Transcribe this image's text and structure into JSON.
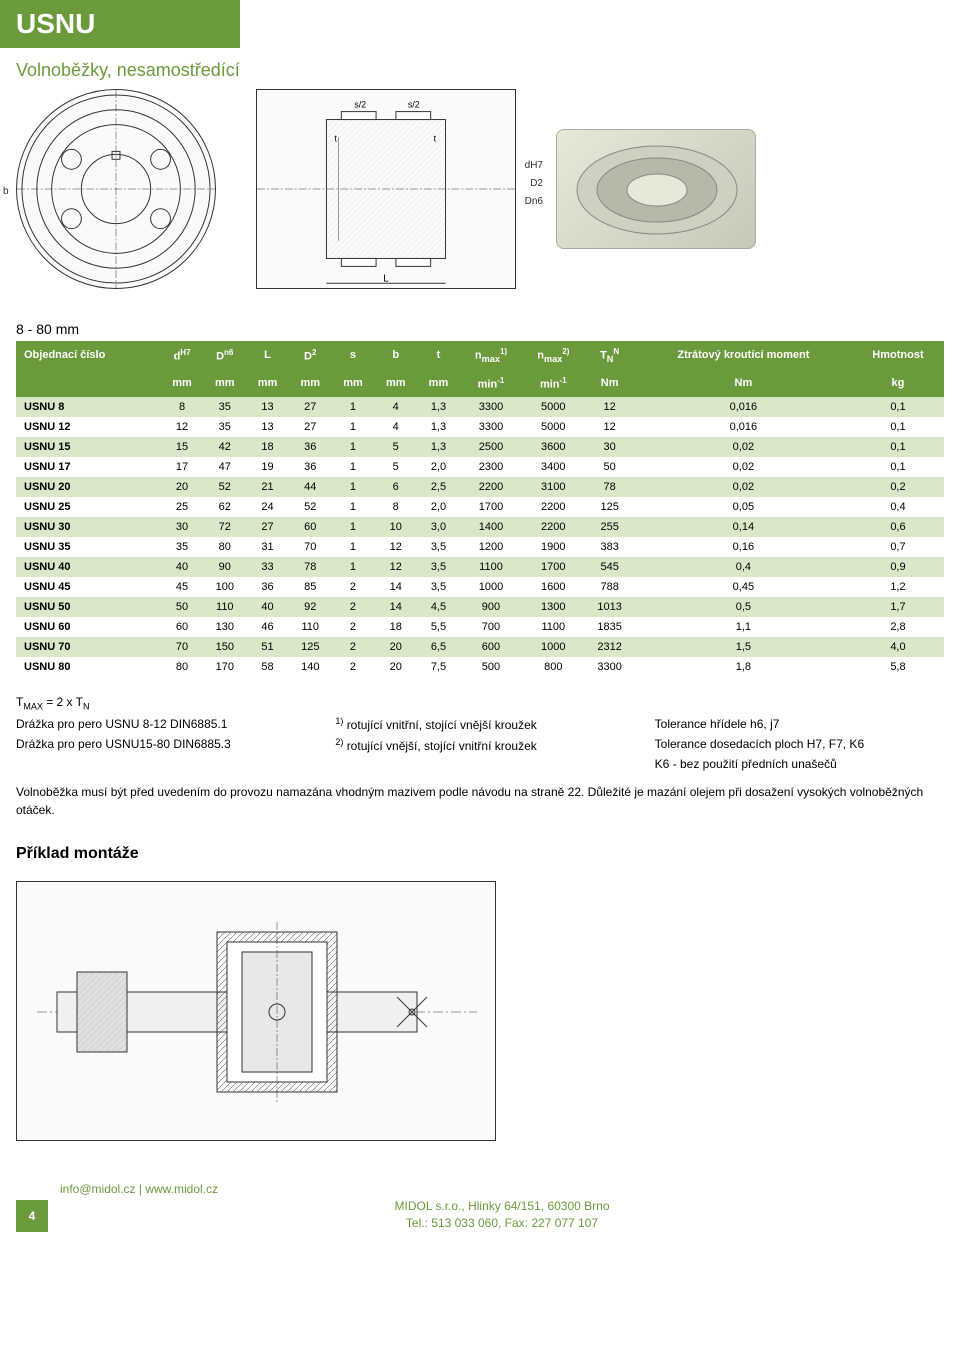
{
  "header": {
    "title": "USNU",
    "subtitle": "Volnoběžky, nesamostředící"
  },
  "range": "8 - 80 mm",
  "diagram_labels": {
    "b": "b",
    "s2_left": "s/2",
    "s2_right": "s/2",
    "t_left": "t",
    "t_right": "t",
    "L": "L",
    "dH7": "dH7",
    "D2": "D2",
    "Dn6": "Dn6"
  },
  "table": {
    "columns": [
      {
        "label": "Objednací číslo",
        "sup": "",
        "unit": ""
      },
      {
        "label": "d",
        "sup": "H7",
        "unit": "mm"
      },
      {
        "label": "D",
        "sup": "n6",
        "unit": "mm"
      },
      {
        "label": "L",
        "sup": "",
        "unit": "mm"
      },
      {
        "label": "D",
        "sup": "2",
        "unit": "mm"
      },
      {
        "label": "s",
        "sup": "",
        "unit": "mm"
      },
      {
        "label": "b",
        "sup": "",
        "unit": "mm"
      },
      {
        "label": "t",
        "sup": "",
        "unit": "mm"
      },
      {
        "label": "n",
        "sup": "max 1)",
        "unit": "min-1",
        "sub": "max"
      },
      {
        "label": "n",
        "sup": "max 2)",
        "unit": "min-1",
        "sub": "max"
      },
      {
        "label": "T",
        "sup": "N",
        "unit": "Nm",
        "sub": "N"
      },
      {
        "label": "Ztrátový kroutící moment",
        "sup": "",
        "unit": "Nm"
      },
      {
        "label": "Hmotnost",
        "sup": "",
        "unit": "kg"
      }
    ],
    "rows": [
      [
        "USNU 8",
        "8",
        "35",
        "13",
        "27",
        "1",
        "4",
        "1,3",
        "3300",
        "5000",
        "12",
        "0,016",
        "0,1"
      ],
      [
        "USNU 12",
        "12",
        "35",
        "13",
        "27",
        "1",
        "4",
        "1,3",
        "3300",
        "5000",
        "12",
        "0,016",
        "0,1"
      ],
      [
        "USNU 15",
        "15",
        "42",
        "18",
        "36",
        "1",
        "5",
        "1,3",
        "2500",
        "3600",
        "30",
        "0,02",
        "0,1"
      ],
      [
        "USNU 17",
        "17",
        "47",
        "19",
        "36",
        "1",
        "5",
        "2,0",
        "2300",
        "3400",
        "50",
        "0,02",
        "0,1"
      ],
      [
        "USNU 20",
        "20",
        "52",
        "21",
        "44",
        "1",
        "6",
        "2,5",
        "2200",
        "3100",
        "78",
        "0,02",
        "0,2"
      ],
      [
        "USNU 25",
        "25",
        "62",
        "24",
        "52",
        "1",
        "8",
        "2,0",
        "1700",
        "2200",
        "125",
        "0,05",
        "0,4"
      ],
      [
        "USNU 30",
        "30",
        "72",
        "27",
        "60",
        "1",
        "10",
        "3,0",
        "1400",
        "2200",
        "255",
        "0,14",
        "0,6"
      ],
      [
        "USNU 35",
        "35",
        "80",
        "31",
        "70",
        "1",
        "12",
        "3,5",
        "1200",
        "1900",
        "383",
        "0,16",
        "0,7"
      ],
      [
        "USNU 40",
        "40",
        "90",
        "33",
        "78",
        "1",
        "12",
        "3,5",
        "1100",
        "1700",
        "545",
        "0,4",
        "0,9"
      ],
      [
        "USNU 45",
        "45",
        "100",
        "36",
        "85",
        "2",
        "14",
        "3,5",
        "1000",
        "1600",
        "788",
        "0,45",
        "1,2"
      ],
      [
        "USNU 50",
        "50",
        "110",
        "40",
        "92",
        "2",
        "14",
        "4,5",
        "900",
        "1300",
        "1013",
        "0,5",
        "1,7"
      ],
      [
        "USNU 60",
        "60",
        "130",
        "46",
        "110",
        "2",
        "18",
        "5,5",
        "700",
        "1100",
        "1835",
        "1,1",
        "2,8"
      ],
      [
        "USNU 70",
        "70",
        "150",
        "51",
        "125",
        "2",
        "20",
        "6,5",
        "600",
        "1000",
        "2312",
        "1,5",
        "4,0"
      ],
      [
        "USNU 80",
        "80",
        "170",
        "58",
        "140",
        "2",
        "20",
        "7,5",
        "500",
        "800",
        "3300",
        "1,8",
        "5,8"
      ]
    ],
    "header_bg": "#6a9a3a",
    "row_even_bg": "#d8e8c8",
    "row_odd_bg": "#ffffff"
  },
  "notes": {
    "tmax": "TMAX = 2 x TN",
    "left": [
      "Drážka pro pero USNU 8-12 DIN6885.1",
      "Drážka pro pero USNU15-80 DIN6885.3"
    ],
    "mid": [
      "1) rotující vnitřní, stojící vnější kroužek",
      "2) rotující vnější, stojící vnitřní kroužek"
    ],
    "right": [
      "Tolerance hřídele h6, j7",
      "Tolerance dosedacích ploch H7, F7, K6",
      "K6 - bez použití předních unašečů"
    ],
    "bottom": "Volnoběžka musí být před uvedením do provozu namazána vhodným mazivem podle návodu na straně 22. Důležité je mazání olejem při dosažení vysokých volnoběžných otáček."
  },
  "example": {
    "title": "Příklad montáže"
  },
  "footer": {
    "page": "4",
    "line1": "info@midol.cz | www.midol.cz",
    "line2": "MIDOL s.r.o., Hlinky 64/151, 60300 Brno",
    "line3": "Tel.: 513 033 060, Fax: 227 077 107"
  },
  "colors": {
    "brand": "#6a9a3a",
    "text": "#000000",
    "bg": "#ffffff"
  }
}
